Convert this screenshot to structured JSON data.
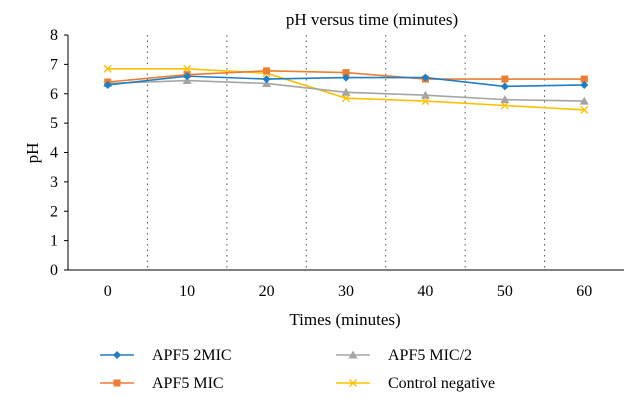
{
  "chart_data": {
    "type": "line",
    "title": "pH versus time (minutes)",
    "xlabel": "Times (minutes)",
    "ylabel": "pH",
    "categories": [
      "0",
      "10",
      "20",
      "30",
      "40",
      "50",
      "60"
    ],
    "ylim": [
      0,
      8
    ],
    "yticks": [
      "0",
      "1",
      "2",
      "3",
      "4",
      "5",
      "6",
      "7",
      "8"
    ],
    "grid": "vertical dotted lines between categories",
    "legend_position": "bottom",
    "series": [
      {
        "name": "APF5 2MIC",
        "values": [
          6.3,
          6.6,
          6.5,
          6.55,
          6.55,
          6.25,
          6.3
        ],
        "color": "#1f7fc4",
        "marker": "diamond"
      },
      {
        "name": "APF5 MIC",
        "values": [
          6.4,
          6.65,
          6.78,
          6.72,
          6.5,
          6.5,
          6.5
        ],
        "color": "#ed7d31",
        "marker": "square"
      },
      {
        "name": "APF5 MIC/2",
        "values": [
          6.35,
          6.45,
          6.35,
          6.05,
          5.95,
          5.8,
          5.75
        ],
        "color": "#a5a5a5",
        "marker": "triangle"
      },
      {
        "name": "Control negative",
        "values": [
          6.85,
          6.85,
          6.7,
          5.85,
          5.75,
          5.6,
          5.45
        ],
        "color": "#ffc000",
        "marker": "x"
      }
    ]
  }
}
